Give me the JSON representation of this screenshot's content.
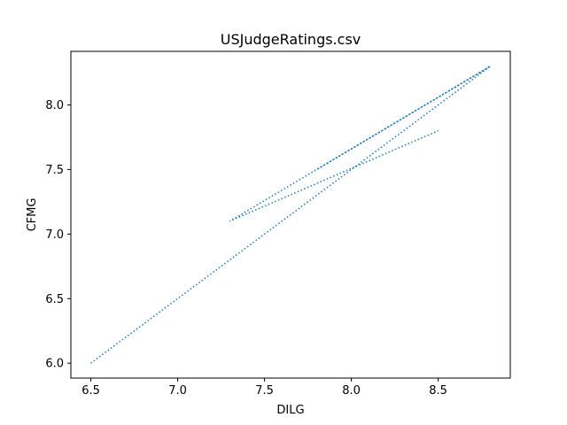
{
  "chart_data": {
    "type": "line",
    "title": "USJudgeRatings.csv",
    "xlabel": "DILG",
    "ylabel": "CFMG",
    "xlim": [
      6.385,
      8.915
    ],
    "ylim": [
      5.885,
      8.415
    ],
    "xticks": [
      "6.5",
      "7.0",
      "7.5",
      "8.0",
      "8.5"
    ],
    "yticks": [
      "6.0",
      "6.5",
      "7.0",
      "7.5",
      "8.0"
    ],
    "grid": false,
    "line_style": "dotted",
    "series": [
      {
        "name": "",
        "color": "#1f77b4",
        "x": [
          6.5,
          8.8,
          7.8,
          8.8,
          7.3,
          8.5
        ],
        "y": [
          6.0,
          8.3,
          7.5,
          8.3,
          7.1,
          7.8
        ]
      }
    ]
  }
}
